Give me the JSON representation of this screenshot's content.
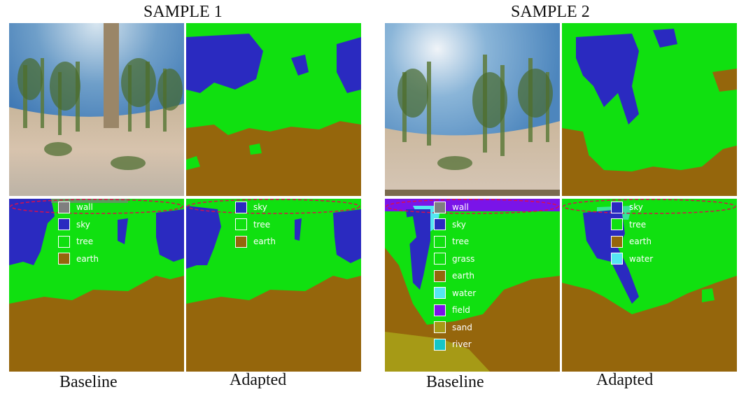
{
  "colors": {
    "wall": "#7f7f7f",
    "sky": "#2a2ac0",
    "tree": "#10e010",
    "grass": "#10e010",
    "earth": "#95660c",
    "water": "#55e6f2",
    "field": "#7a14e8",
    "sand": "#a69a16",
    "river": "#14c6c6"
  },
  "samples": [
    {
      "title": "SAMPLE 1",
      "baseline_caption": "Baseline",
      "adapted_caption": "Adapted",
      "baseline_legend": [
        "wall",
        "sky",
        "tree",
        "earth"
      ],
      "adapted_legend": [
        "sky",
        "tree",
        "earth"
      ]
    },
    {
      "title": "SAMPLE 2",
      "baseline_caption": "Baseline",
      "adapted_caption": "Adapted",
      "baseline_legend": [
        "wall",
        "sky",
        "tree",
        "grass",
        "earth",
        "water",
        "field",
        "sand",
        "river"
      ],
      "adapted_legend": [
        "sky",
        "tree",
        "earth",
        "water"
      ]
    }
  ]
}
